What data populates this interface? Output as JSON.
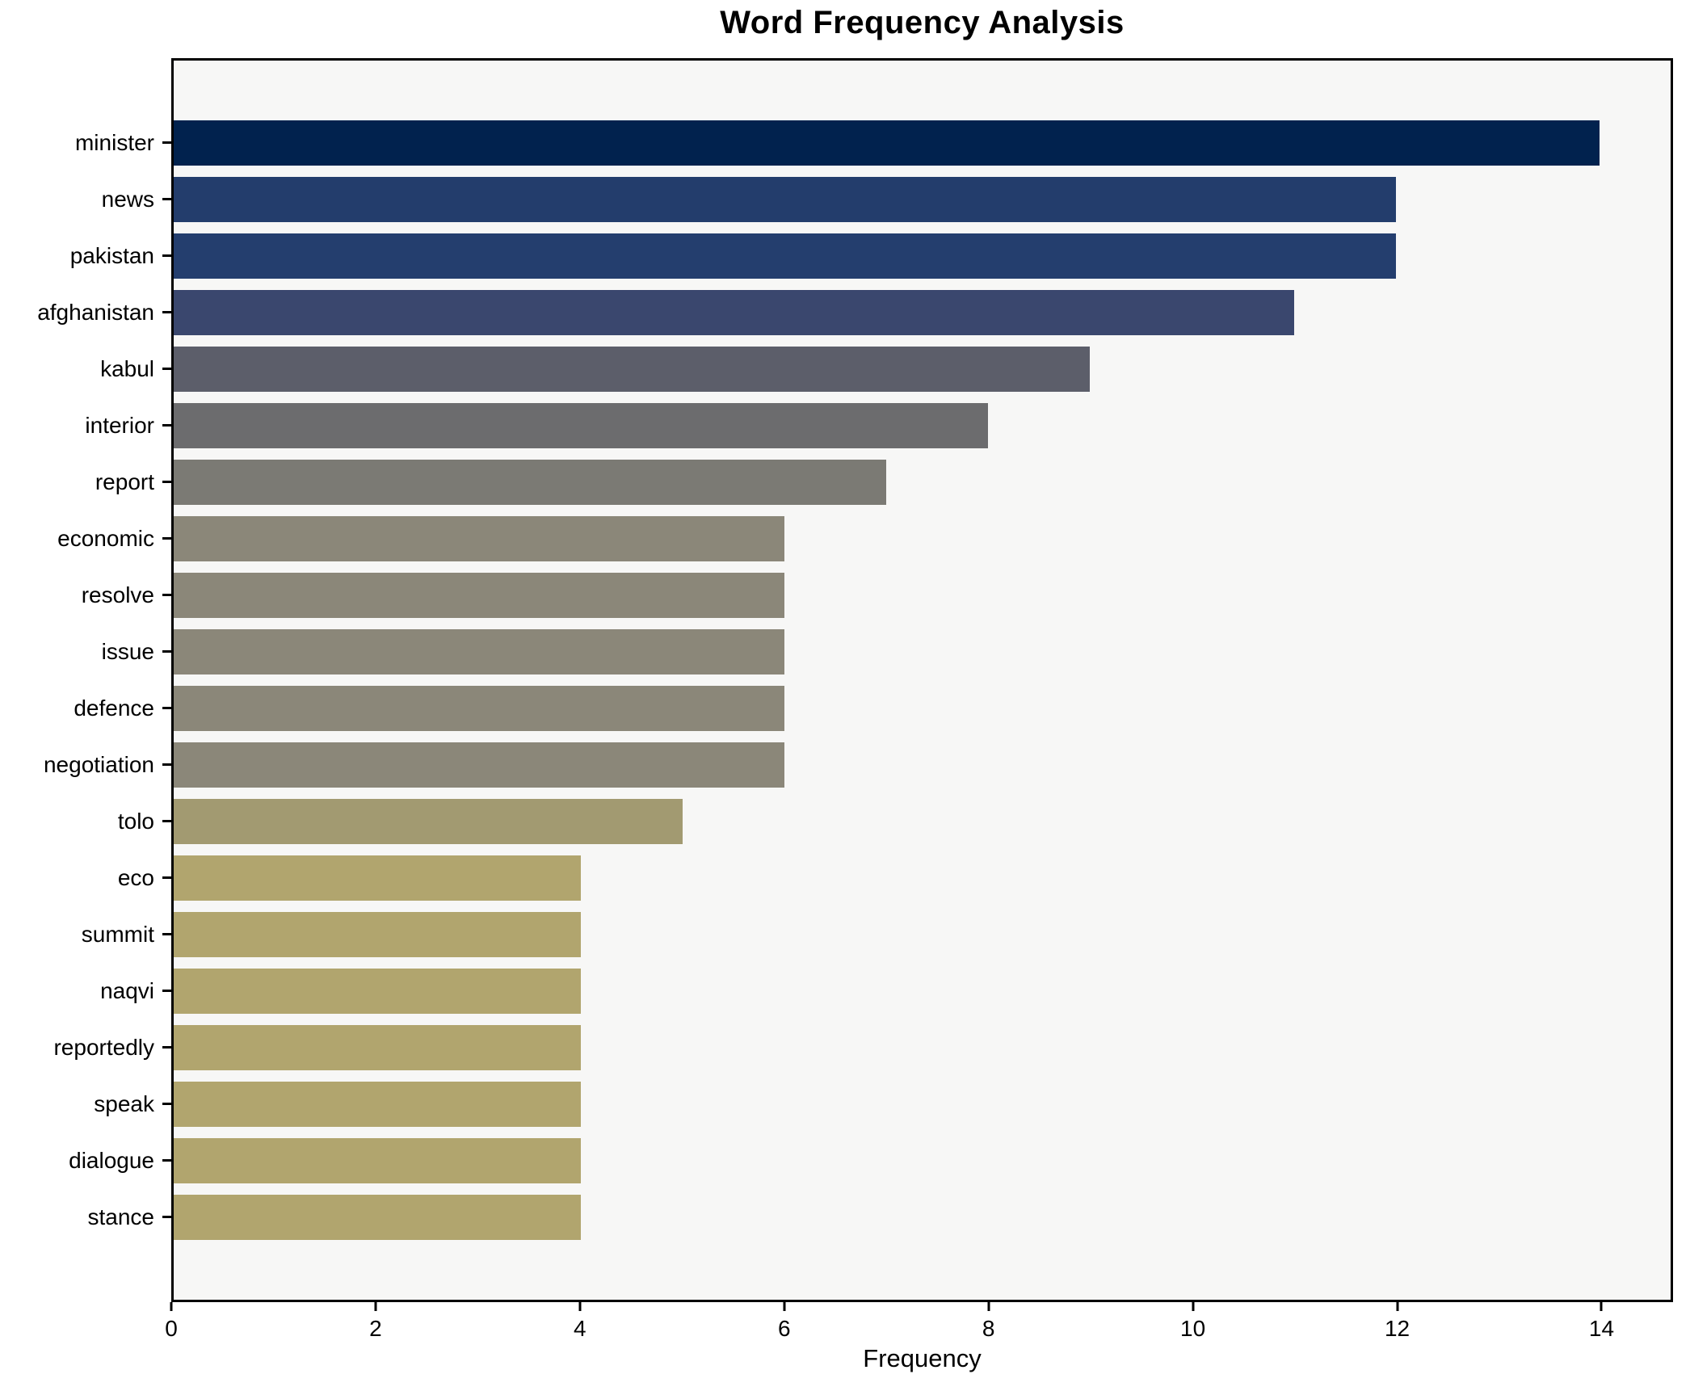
{
  "chart_data": {
    "type": "bar",
    "orientation": "horizontal",
    "title": "Word Frequency Analysis",
    "xlabel": "Frequency",
    "ylabel": "",
    "xlim": [
      0,
      14.7
    ],
    "x_ticks": [
      0,
      2,
      4,
      6,
      8,
      10,
      12,
      14
    ],
    "grid": false,
    "legend": "none",
    "colormap": "cividis",
    "plot_background": "#f7f7f6",
    "figure_background": "#ffffff",
    "spine_color": "#000000",
    "text_color": "#000000",
    "categories": [
      "minister",
      "news",
      "pakistan",
      "afghanistan",
      "kabul",
      "interior",
      "report",
      "economic",
      "resolve",
      "issue",
      "defence",
      "negotiation",
      "tolo",
      "eco",
      "summit",
      "naqvi",
      "reportedly",
      "speak",
      "dialogue",
      "stance"
    ],
    "values": [
      14,
      12,
      12,
      11,
      9,
      8,
      7,
      6,
      6,
      6,
      6,
      6,
      5,
      4,
      4,
      4,
      4,
      4,
      4,
      4
    ],
    "bars": [
      {
        "label": "minister",
        "value": 14,
        "color": "#01224e"
      },
      {
        "label": "news",
        "value": 12,
        "color": "#233d6c"
      },
      {
        "label": "pakistan",
        "value": 12,
        "color": "#243e6e"
      },
      {
        "label": "afghanistan",
        "value": 11,
        "color": "#3a476e"
      },
      {
        "label": "kabul",
        "value": 9,
        "color": "#5c5e6a"
      },
      {
        "label": "interior",
        "value": 8,
        "color": "#6c6c6e"
      },
      {
        "label": "report",
        "value": 7,
        "color": "#7b7a74"
      },
      {
        "label": "economic",
        "value": 6,
        "color": "#8b8779"
      },
      {
        "label": "resolve",
        "value": 6,
        "color": "#8b8779"
      },
      {
        "label": "issue",
        "value": 6,
        "color": "#8b8779"
      },
      {
        "label": "defence",
        "value": 6,
        "color": "#8b8779"
      },
      {
        "label": "negotiation",
        "value": 6,
        "color": "#8b8779"
      },
      {
        "label": "tolo",
        "value": 5,
        "color": "#a29a71"
      },
      {
        "label": "eco",
        "value": 4,
        "color": "#b1a56e"
      },
      {
        "label": "summit",
        "value": 4,
        "color": "#b1a56e"
      },
      {
        "label": "naqvi",
        "value": 4,
        "color": "#b1a56e"
      },
      {
        "label": "reportedly",
        "value": 4,
        "color": "#b1a56e"
      },
      {
        "label": "speak",
        "value": 4,
        "color": "#b1a56e"
      },
      {
        "label": "dialogue",
        "value": 4,
        "color": "#b1a56e"
      },
      {
        "label": "stance",
        "value": 4,
        "color": "#b1a56e"
      }
    ]
  }
}
